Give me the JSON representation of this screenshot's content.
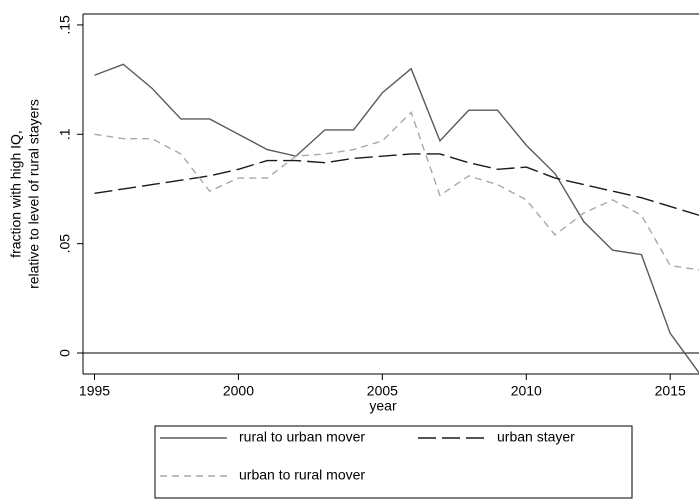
{
  "chart_data": {
    "type": "line",
    "ylabel": [
      "fraction with high IQ,",
      "relative to level of rural stayers"
    ],
    "xlabel": "year",
    "x": [
      1995,
      1996,
      1997,
      1998,
      1999,
      2000,
      2001,
      2002,
      2003,
      2004,
      2005,
      2006,
      2007,
      2008,
      2009,
      2010,
      2011,
      2012,
      2013,
      2014,
      2015,
      2016
    ],
    "series": [
      {
        "name": "rural to urban mover",
        "color": "#5a5a5a",
        "dash": "solid",
        "values": [
          0.127,
          0.132,
          0.121,
          0.107,
          0.107,
          0.1,
          0.093,
          0.09,
          0.102,
          0.102,
          0.119,
          0.13,
          0.097,
          0.111,
          0.111,
          0.095,
          0.082,
          0.06,
          0.047,
          0.045,
          0.009,
          -0.009
        ]
      },
      {
        "name": "urban stayer",
        "color": "#1a1a1a",
        "dash": "long",
        "values": [
          0.073,
          0.075,
          0.077,
          0.079,
          0.081,
          0.084,
          0.088,
          0.088,
          0.087,
          0.089,
          0.09,
          0.091,
          0.091,
          0.087,
          0.084,
          0.085,
          0.08,
          0.077,
          0.074,
          0.071,
          0.067,
          0.063
        ]
      },
      {
        "name": "urban to rural mover",
        "color": "#a8a8a8",
        "dash": "short",
        "values": [
          0.1,
          0.098,
          0.098,
          0.091,
          0.074,
          0.08,
          0.08,
          0.09,
          0.091,
          0.093,
          0.097,
          0.11,
          0.072,
          0.081,
          0.077,
          0.07,
          0.054,
          0.064,
          0.07,
          0.063,
          0.04,
          0.038
        ]
      }
    ],
    "xlim": [
      1994.6,
      2016
    ],
    "xticks": [
      1995,
      2000,
      2005,
      2010,
      2015
    ],
    "ylim": [
      -0.0096,
      0.155
    ],
    "yticks": [
      0,
      {
        "value": 0.05,
        "label": ".05"
      },
      {
        "value": 0.1,
        "label": ".1"
      },
      {
        "value": 0.15,
        "label": ".15"
      }
    ],
    "zero_line": true
  }
}
